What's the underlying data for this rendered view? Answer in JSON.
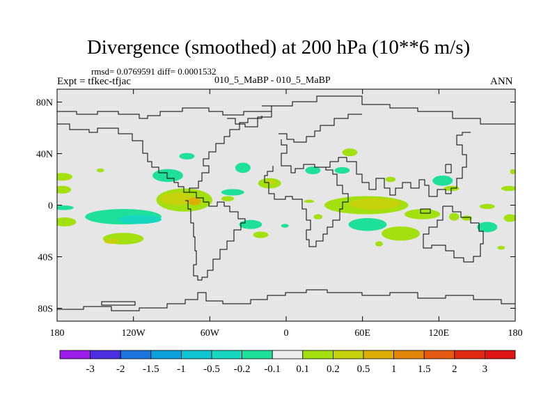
{
  "header": {
    "title": "Divergence (smoothed) at 200 hPa (10**6 m/s)",
    "stats": "rmsd= 0.0769591 diff= 0.0001532",
    "expt": "Expt = tfkec-tfjac",
    "case": "010_5_MaBP - 010_5_MaBP",
    "season": "ANN"
  },
  "chart_data": {
    "type": "heatmap",
    "title": "Divergence (smoothed) at 200 hPa (10**6 m/s)",
    "xlim": [
      -180,
      180
    ],
    "ylim": [
      -90,
      90
    ],
    "x_ticks": [
      {
        "value": -180,
        "label": "180"
      },
      {
        "value": -120,
        "label": "120W"
      },
      {
        "value": -60,
        "label": "60W"
      },
      {
        "value": 0,
        "label": "0"
      },
      {
        "value": 60,
        "label": "60E"
      },
      {
        "value": 120,
        "label": "120E"
      },
      {
        "value": 180,
        "label": "180"
      }
    ],
    "y_ticks": [
      {
        "value": 80,
        "label": "80N"
      },
      {
        "value": 40,
        "label": "40N"
      },
      {
        "value": 0,
        "label": "0"
      },
      {
        "value": -40,
        "label": "40S"
      },
      {
        "value": -80,
        "label": "80S"
      }
    ],
    "background_color": "#e6e6e6",
    "colorbar": {
      "labels": [
        "-3",
        "-2",
        "-1.5",
        "-1",
        "-0.5",
        "-0.2",
        "-0.1",
        "0.1",
        "0.2",
        "0.5",
        "1",
        "1.5",
        "2",
        "3"
      ],
      "colors": [
        "#9b1be8",
        "#4a2ee0",
        "#1b74dc",
        "#0ba0dc",
        "#0fc4d2",
        "#18d7c0",
        "#1ee09a",
        "#ececec",
        "#a2e010",
        "#c6d20c",
        "#dcae06",
        "#e4860a",
        "#e45a12",
        "#e02a10",
        "#e01414"
      ]
    },
    "anomalies": [
      {
        "lon": -176,
        "lat": 22,
        "rx": 8,
        "ry": 3,
        "level": "0.1"
      },
      {
        "lon": -146,
        "lat": 27,
        "rx": 3,
        "ry": 1.5,
        "level": "0.1"
      },
      {
        "lon": -176,
        "lat": 12,
        "rx": 7,
        "ry": 3,
        "level": "0.1"
      },
      {
        "lon": -175,
        "lat": -2,
        "rx": 8,
        "ry": 1.8,
        "level": "-0.1"
      },
      {
        "lon": -174,
        "lat": -13,
        "rx": 9,
        "ry": 3.5,
        "level": "0.1"
      },
      {
        "lon": -128,
        "lat": -9,
        "rx": 30,
        "ry": 6,
        "level": "-0.1"
      },
      {
        "lon": -115,
        "lat": -11,
        "rx": 17,
        "ry": 3.5,
        "level": "-0.2"
      },
      {
        "lon": -128,
        "lat": -26,
        "rx": 16,
        "ry": 4.5,
        "level": "0.1"
      },
      {
        "lon": -137,
        "lat": -28,
        "rx": 6,
        "ry": 2,
        "level": "0.2"
      },
      {
        "lon": -93,
        "lat": 23,
        "rx": 12,
        "ry": 5,
        "level": "-0.1"
      },
      {
        "lon": -78,
        "lat": 38,
        "rx": 6,
        "ry": 2.5,
        "level": "-0.1"
      },
      {
        "lon": -80,
        "lat": 4,
        "rx": 22,
        "ry": 9,
        "level": "0.1"
      },
      {
        "lon": -86,
        "lat": 5,
        "rx": 13,
        "ry": 5,
        "level": "0.2"
      },
      {
        "lon": -72,
        "lat": 3,
        "rx": 5,
        "ry": 3,
        "level": "0.5"
      },
      {
        "lon": -34,
        "lat": 29,
        "rx": 6,
        "ry": 4,
        "level": "-0.1"
      },
      {
        "lon": -42,
        "lat": 10,
        "rx": 9,
        "ry": 2.5,
        "level": "-0.1"
      },
      {
        "lon": -46,
        "lat": 5,
        "rx": 5,
        "ry": 2,
        "level": "0.1"
      },
      {
        "lon": -28,
        "lat": -15,
        "rx": 9,
        "ry": 3.5,
        "level": "-0.1"
      },
      {
        "lon": -20,
        "lat": -23,
        "rx": 6,
        "ry": 2.5,
        "level": "0.1"
      },
      {
        "lon": -13,
        "lat": 17,
        "rx": 9,
        "ry": 4,
        "level": "0.1"
      },
      {
        "lon": -12,
        "lat": 18,
        "rx": 4,
        "ry": 1.5,
        "level": "0.2"
      },
      {
        "lon": -1,
        "lat": -16,
        "rx": 3,
        "ry": 1.5,
        "level": "-0.1"
      },
      {
        "lon": 18,
        "lat": 3,
        "rx": 4,
        "ry": 1.2,
        "level": "0.1"
      },
      {
        "lon": 25,
        "lat": -9,
        "rx": 3.5,
        "ry": 2,
        "level": "0.1"
      },
      {
        "lon": 21,
        "lat": 27,
        "rx": 6,
        "ry": 3,
        "level": "-0.1"
      },
      {
        "lon": 44,
        "lat": 27,
        "rx": 6,
        "ry": 2.5,
        "level": "-0.1"
      },
      {
        "lon": 50,
        "lat": 41,
        "rx": 6,
        "ry": 3,
        "level": "0.1"
      },
      {
        "lon": 63,
        "lat": 0,
        "rx": 33,
        "ry": 7,
        "level": "0.1"
      },
      {
        "lon": 70,
        "lat": 1,
        "rx": 20,
        "ry": 4.5,
        "level": "0.2"
      },
      {
        "lon": 64,
        "lat": -15,
        "rx": 15,
        "ry": 5,
        "level": "-0.1"
      },
      {
        "lon": 90,
        "lat": -22,
        "rx": 15,
        "ry": 5.5,
        "level": "0.1"
      },
      {
        "lon": 73,
        "lat": -30,
        "rx": 3,
        "ry": 2,
        "level": "0.1"
      },
      {
        "lon": 107,
        "lat": -7,
        "rx": 14,
        "ry": 4,
        "level": "0.1"
      },
      {
        "lon": 82,
        "lat": 20,
        "rx": 4,
        "ry": 2,
        "level": "0.1"
      },
      {
        "lon": 123,
        "lat": 19,
        "rx": 8,
        "ry": 4,
        "level": "-0.1"
      },
      {
        "lon": 130,
        "lat": 13,
        "rx": 6,
        "ry": 2,
        "level": "0.1"
      },
      {
        "lon": 132,
        "lat": -9,
        "rx": 4,
        "ry": 3,
        "level": "0.1"
      },
      {
        "lon": 142,
        "lat": -10,
        "rx": 4,
        "ry": 2,
        "level": "0.1"
      },
      {
        "lon": 158,
        "lat": -1,
        "rx": 6,
        "ry": 2,
        "level": "0.1"
      },
      {
        "lon": 158,
        "lat": -17,
        "rx": 8,
        "ry": 4,
        "level": "-0.1"
      },
      {
        "lon": 176,
        "lat": -10,
        "rx": 5,
        "ry": 3,
        "level": "0.1"
      },
      {
        "lon": 169,
        "lat": -33,
        "rx": 3,
        "ry": 1.5,
        "level": "0.1"
      },
      {
        "lon": 175,
        "lat": 13,
        "rx": 6,
        "ry": 2,
        "level": "0.1"
      },
      {
        "lon": 178,
        "lat": 26,
        "rx": 2,
        "ry": 2,
        "level": "0.1"
      }
    ]
  }
}
